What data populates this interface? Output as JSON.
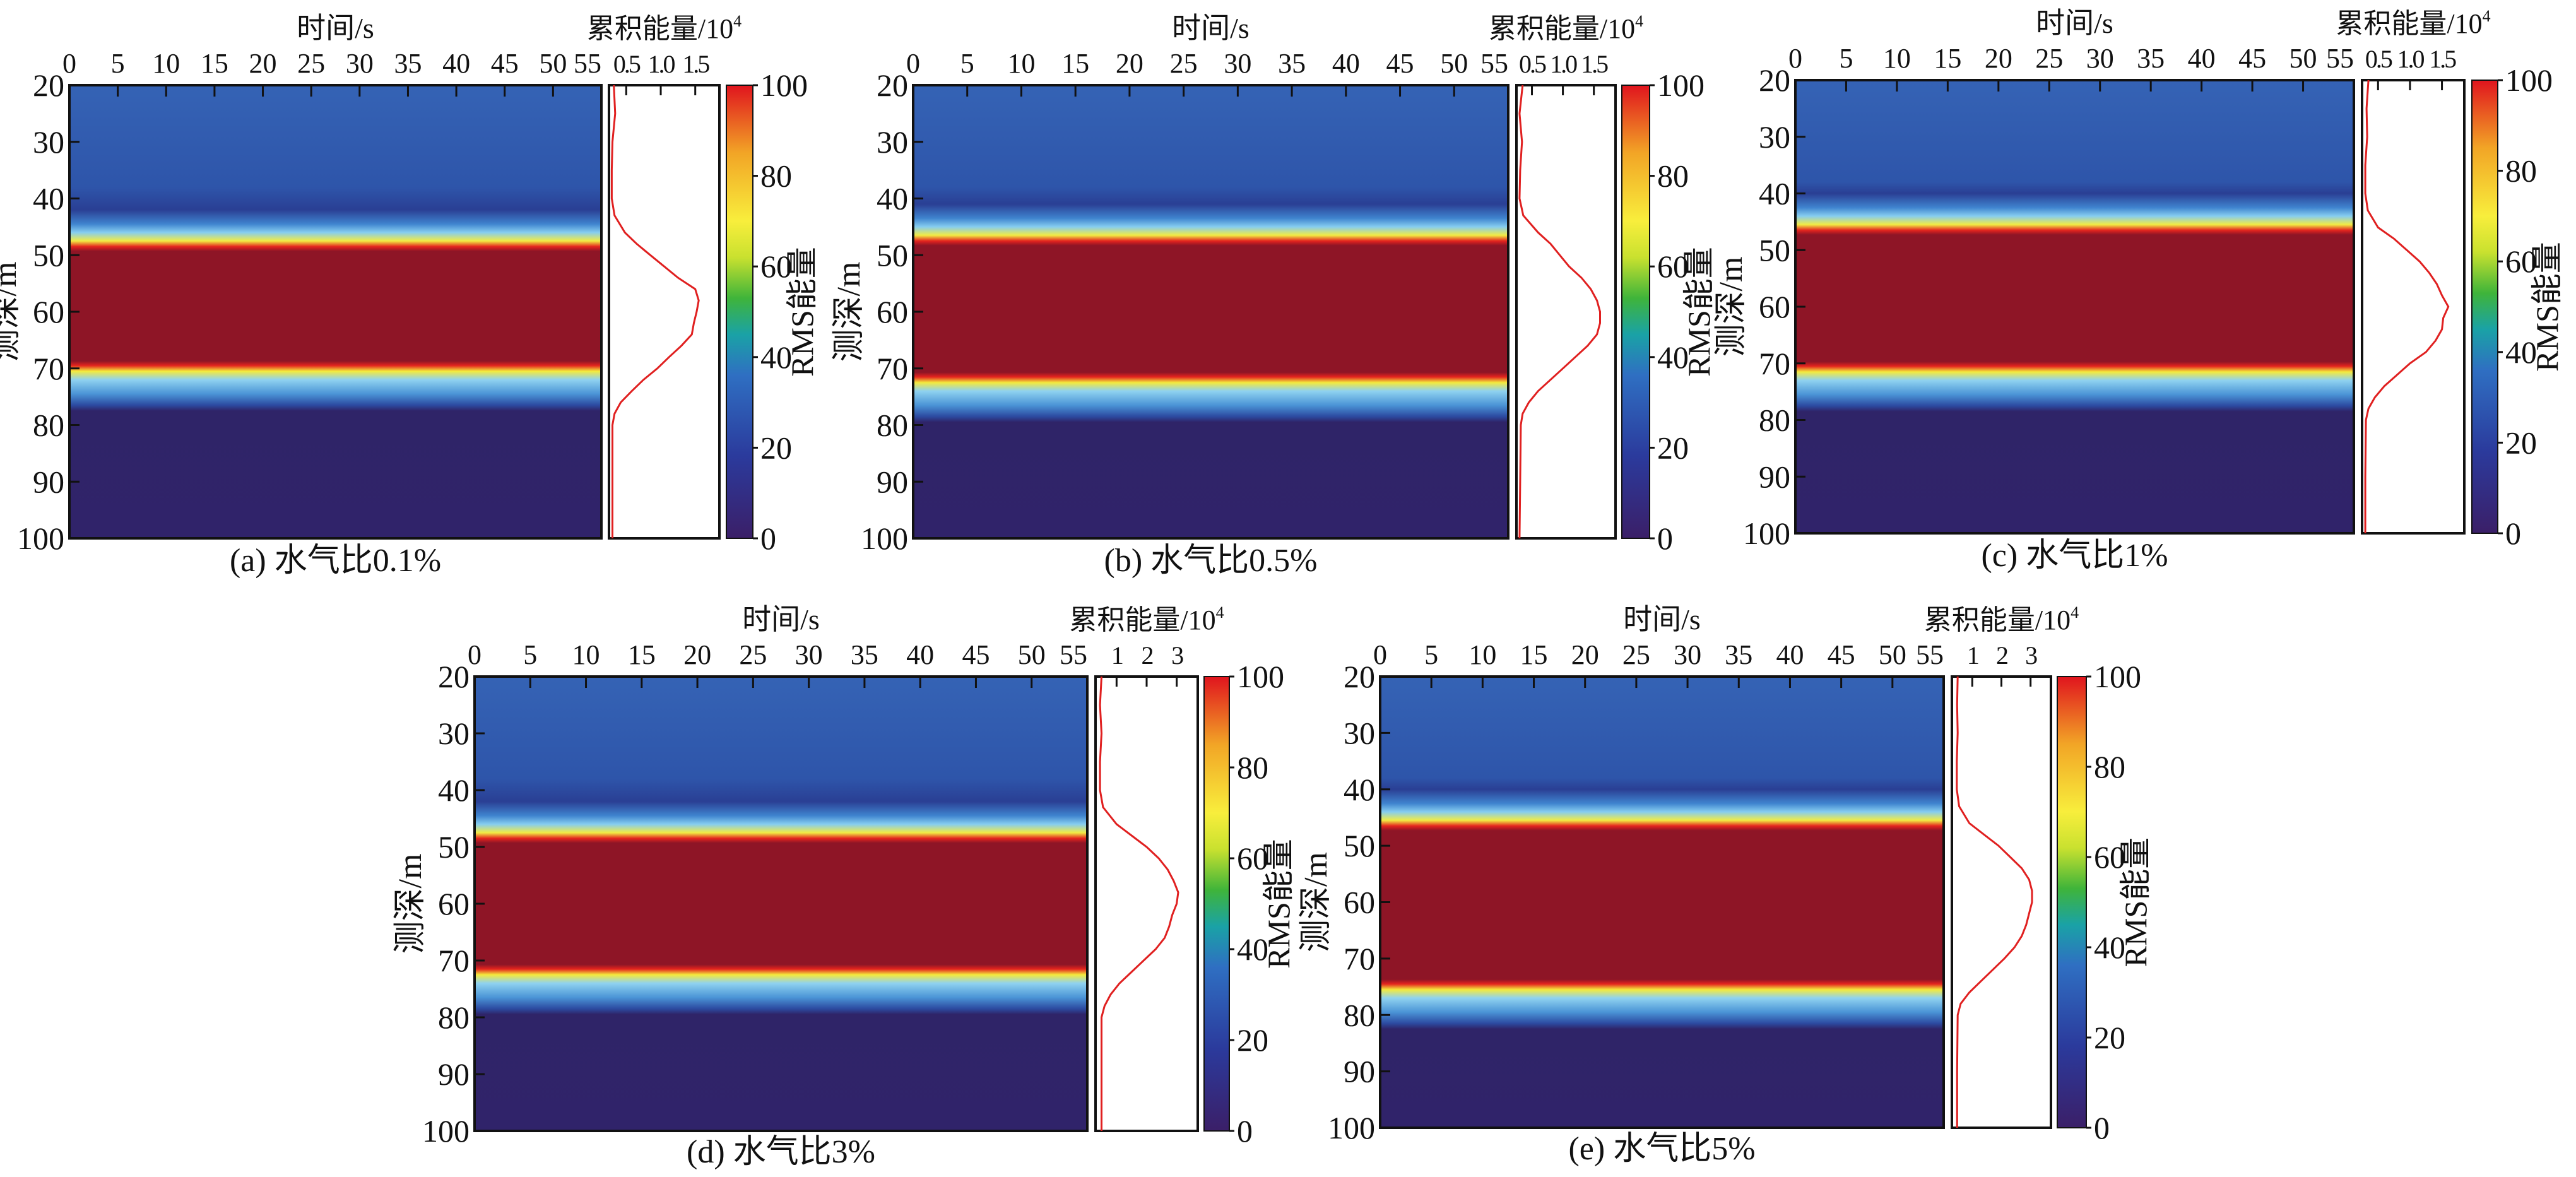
{
  "colors": {
    "colormap": [
      "#3b1f68",
      "#2b3a9c",
      "#2f6fc2",
      "#1aa2a6",
      "#3fb43a",
      "#c9e12f",
      "#f8ee3c",
      "#f2a526",
      "#e0141e"
    ],
    "profile_line": "#e02020",
    "band_core": "#8e1526",
    "background_shallow": "#2f5db2",
    "background_deep": "#2f2468"
  },
  "chart_data": [
    {
      "type": "heatmap",
      "caption": "(a) 水气比0.1%",
      "xlabel": "时间/s",
      "ylabel": "测深/m",
      "xticks": [
        "0",
        "5",
        "10",
        "15",
        "20",
        "25",
        "30",
        "35",
        "40",
        "45",
        "50",
        "55"
      ],
      "xlim": [
        0,
        55
      ],
      "yticks": [
        "20",
        "30",
        "40",
        "50",
        "60",
        "70",
        "80",
        "90",
        "100"
      ],
      "ylim": [
        20,
        100
      ],
      "colorbar": {
        "label": "RMS能量",
        "ticks": [
          "0",
          "20",
          "40",
          "60",
          "80",
          "100"
        ],
        "range": [
          0,
          100
        ]
      },
      "high_energy_zone_depth_m": [
        49,
        69
      ],
      "profile": {
        "xlabel": "累积能量/10",
        "xlabel_sup": "4",
        "xticks": [
          "0.5",
          "1.0",
          "1.5"
        ],
        "xlim": [
          0.25,
          1.85
        ],
        "depth": [
          20,
          25,
          30,
          35,
          40,
          43,
          46,
          48,
          50,
          52,
          54,
          56,
          58,
          60,
          62,
          64,
          66,
          68,
          70,
          72,
          74,
          76,
          78,
          80,
          90,
          100
        ],
        "value": [
          0.32,
          0.34,
          0.3,
          0.29,
          0.29,
          0.33,
          0.48,
          0.65,
          0.85,
          1.05,
          1.25,
          1.5,
          1.55,
          1.52,
          1.48,
          1.45,
          1.3,
          1.12,
          0.95,
          0.75,
          0.58,
          0.42,
          0.33,
          0.3,
          0.3,
          0.3
        ]
      }
    },
    {
      "type": "heatmap",
      "caption": "(b) 水气比0.5%",
      "xlabel": "时间/s",
      "ylabel": "测深/m",
      "xticks": [
        "0",
        "5",
        "10",
        "15",
        "20",
        "25",
        "30",
        "35",
        "40",
        "45",
        "50",
        "55"
      ],
      "xlim": [
        0,
        55
      ],
      "yticks": [
        "20",
        "30",
        "40",
        "50",
        "60",
        "70",
        "80",
        "90",
        "100"
      ],
      "ylim": [
        20,
        100
      ],
      "colorbar": {
        "label": "RMS能量",
        "ticks": [
          "0",
          "20",
          "40",
          "60",
          "80",
          "100"
        ],
        "range": [
          0,
          100
        ]
      },
      "high_energy_zone_depth_m": [
        48,
        71
      ],
      "profile": {
        "xlabel": "累积能量/10",
        "xlabel_sup": "4",
        "xticks": [
          "0.5",
          "1.0",
          "1.5"
        ],
        "xlim": [
          0.25,
          1.85
        ],
        "depth": [
          20,
          25,
          30,
          35,
          40,
          43,
          46,
          48,
          50,
          52,
          54,
          56,
          58,
          60,
          62,
          64,
          66,
          68,
          70,
          72,
          74,
          76,
          78,
          80,
          90,
          100
        ],
        "value": [
          0.35,
          0.3,
          0.34,
          0.31,
          0.3,
          0.36,
          0.6,
          0.8,
          0.95,
          1.1,
          1.3,
          1.45,
          1.55,
          1.6,
          1.6,
          1.55,
          1.4,
          1.2,
          1.0,
          0.8,
          0.6,
          0.45,
          0.35,
          0.32,
          0.31,
          0.3
        ]
      }
    },
    {
      "type": "heatmap",
      "caption": "(c) 水气比1%",
      "xlabel": "时间/s",
      "ylabel": "测深/m",
      "xticks": [
        "0",
        "5",
        "10",
        "15",
        "20",
        "25",
        "30",
        "35",
        "40",
        "45",
        "50",
        "55"
      ],
      "xlim": [
        0,
        55
      ],
      "yticks": [
        "20",
        "30",
        "40",
        "50",
        "60",
        "70",
        "80",
        "90",
        "100"
      ],
      "ylim": [
        20,
        100
      ],
      "colorbar": {
        "label": "RMS能量",
        "ticks": [
          "0",
          "20",
          "40",
          "60",
          "80",
          "100"
        ],
        "range": [
          0,
          100
        ]
      },
      "high_energy_zone_depth_m": [
        47,
        70
      ],
      "profile": {
        "xlabel": "累积能量/10",
        "xlabel_sup": "4",
        "xticks": [
          "0.5",
          "1.0",
          "1.5"
        ],
        "xlim": [
          0.25,
          1.85
        ],
        "depth": [
          20,
          25,
          30,
          35,
          40,
          43,
          46,
          48,
          50,
          52,
          54,
          56,
          58,
          60,
          62,
          64,
          66,
          68,
          70,
          72,
          74,
          76,
          78,
          80,
          90,
          100
        ],
        "value": [
          0.35,
          0.32,
          0.33,
          0.3,
          0.3,
          0.34,
          0.5,
          0.75,
          0.95,
          1.15,
          1.3,
          1.42,
          1.5,
          1.6,
          1.52,
          1.5,
          1.4,
          1.25,
          1.0,
          0.8,
          0.6,
          0.45,
          0.35,
          0.31,
          0.3,
          0.3
        ]
      }
    },
    {
      "type": "heatmap",
      "caption": "(d) 水气比3%",
      "xlabel": "时间/s",
      "ylabel": "测深/m",
      "xticks": [
        "0",
        "5",
        "10",
        "15",
        "20",
        "25",
        "30",
        "35",
        "40",
        "45",
        "50",
        "55"
      ],
      "xlim": [
        0,
        55
      ],
      "yticks": [
        "20",
        "30",
        "40",
        "50",
        "60",
        "70",
        "80",
        "90",
        "100"
      ],
      "ylim": [
        20,
        100
      ],
      "colorbar": {
        "label": "RMS能量",
        "ticks": [
          "0",
          "20",
          "40",
          "60",
          "80",
          "100"
        ],
        "range": [
          0,
          100
        ]
      },
      "high_energy_zone_depth_m": [
        49,
        71
      ],
      "profile": {
        "xlabel": "累积能量/10",
        "xlabel_sup": "4",
        "xticks": [
          "1",
          "2",
          "3"
        ],
        "xlim": [
          0.3,
          3.7
        ],
        "depth": [
          20,
          25,
          30,
          35,
          40,
          43,
          46,
          48,
          50,
          52,
          54,
          56,
          58,
          60,
          62,
          64,
          66,
          68,
          70,
          72,
          74,
          76,
          78,
          80,
          90,
          100
        ],
        "value": [
          0.5,
          0.45,
          0.5,
          0.45,
          0.45,
          0.55,
          1.0,
          1.5,
          2.0,
          2.4,
          2.7,
          2.9,
          3.05,
          3.0,
          2.85,
          2.75,
          2.6,
          2.3,
          1.9,
          1.5,
          1.1,
          0.8,
          0.6,
          0.5,
          0.5,
          0.5
        ]
      }
    },
    {
      "type": "heatmap",
      "caption": "(e) 水气比5%",
      "xlabel": "时间/s",
      "ylabel": "测深/m",
      "xticks": [
        "0",
        "5",
        "10",
        "15",
        "20",
        "25",
        "30",
        "35",
        "40",
        "45",
        "50",
        "55"
      ],
      "xlim": [
        0,
        55
      ],
      "yticks": [
        "20",
        "30",
        "40",
        "50",
        "60",
        "70",
        "80",
        "90",
        "100"
      ],
      "ylim": [
        20,
        100
      ],
      "colorbar": {
        "label": "RMS能量",
        "ticks": [
          "0",
          "20",
          "40",
          "60",
          "80",
          "100"
        ],
        "range": [
          0,
          100
        ]
      },
      "high_energy_zone_depth_m": [
        47,
        74
      ],
      "profile": {
        "xlabel": "累积能量/10",
        "xlabel_sup": "4",
        "xticks": [
          "1",
          "2",
          "3"
        ],
        "xlim": [
          0.3,
          3.7
        ],
        "depth": [
          20,
          25,
          30,
          35,
          40,
          43,
          46,
          48,
          50,
          52,
          54,
          56,
          58,
          60,
          62,
          64,
          66,
          68,
          70,
          72,
          74,
          76,
          78,
          80,
          90,
          100
        ],
        "value": [
          0.5,
          0.48,
          0.5,
          0.47,
          0.47,
          0.55,
          0.9,
          1.4,
          1.9,
          2.3,
          2.7,
          2.95,
          3.05,
          3.05,
          2.95,
          2.85,
          2.7,
          2.45,
          2.1,
          1.7,
          1.3,
          0.9,
          0.6,
          0.5,
          0.48,
          0.48
        ]
      }
    }
  ]
}
